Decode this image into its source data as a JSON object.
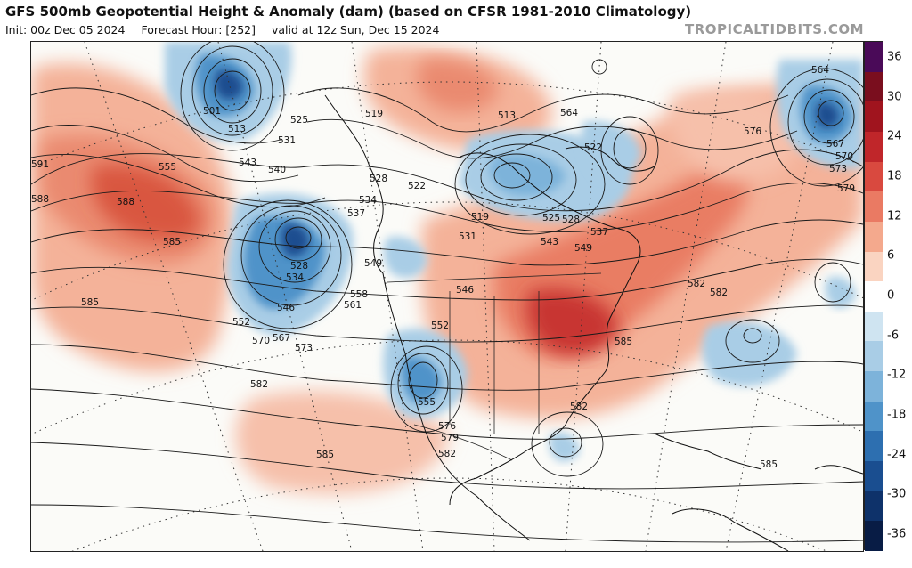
{
  "header": {
    "title": "GFS 500mb Geopotential Height & Anomaly (dam) (based on CFSR 1981-2010 Climatology)",
    "init": "Init: 00z Dec 05 2024",
    "forecast_hour": "Forecast Hour: [252]",
    "valid": "valid at 12z Sun, Dec 15 2024",
    "watermark": "TROPICALTIDBITS.COM"
  },
  "colorbar": {
    "labels": [
      "36",
      "30",
      "24",
      "18",
      "12",
      "6",
      "0",
      "-6",
      "-12",
      "-18",
      "-24",
      "-30",
      "-36"
    ],
    "colors": [
      "#4a0a58",
      "#7a0e1e",
      "#a0141e",
      "#c0262a",
      "#d9493f",
      "#ea7a63",
      "#f4a98d",
      "#fad4c1",
      "#ffffff",
      "#cfe4f1",
      "#a9cde6",
      "#7db3da",
      "#4f93c9",
      "#2d6fb0",
      "#1a4e90",
      "#0e326a",
      "#081c45"
    ],
    "values": [
      36,
      33,
      30,
      27,
      24,
      21,
      18,
      15,
      12,
      9,
      6,
      3,
      0,
      -3,
      -6,
      -9,
      -12,
      -15,
      -18,
      -21,
      -24,
      -27,
      -30,
      -33,
      -36
    ]
  },
  "map": {
    "height_labels": [
      "591",
      "588",
      "588",
      "585",
      "585",
      "585",
      "585",
      "582",
      "582",
      "582",
      "582",
      "579",
      "576",
      "576",
      "573",
      "573",
      "570",
      "570",
      "567",
      "567",
      "564",
      "561",
      "558",
      "555",
      "555",
      "552",
      "552",
      "549",
      "549",
      "546",
      "546",
      "543",
      "543",
      "540",
      "537",
      "537",
      "534",
      "534",
      "531",
      "531",
      "528",
      "528",
      "528",
      "525",
      "525",
      "522",
      "522",
      "519",
      "519",
      "513",
      "513",
      "501",
      "564",
      "579",
      "582",
      "585"
    ]
  }
}
